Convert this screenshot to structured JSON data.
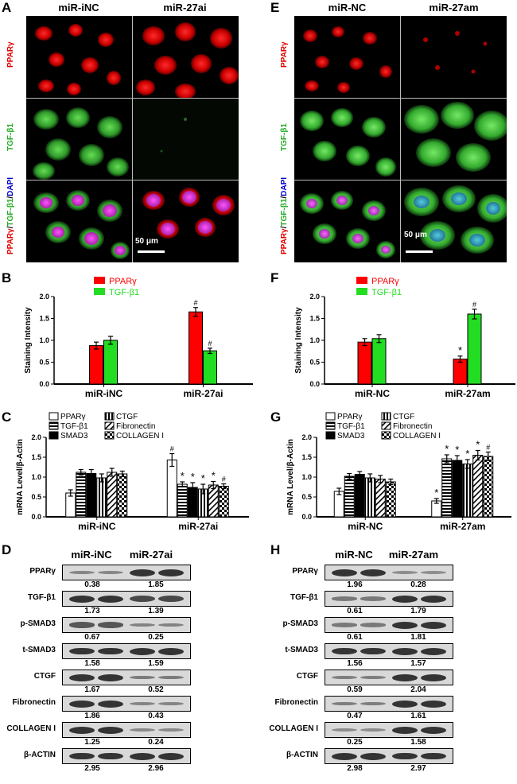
{
  "panels": {
    "A": {
      "letter": "A",
      "col1": "miR-iNC",
      "col2": "miR-27ai",
      "rows": [
        "PPARγ",
        "TGF-β1",
        "PPARγ/TGF-β1/DAPI"
      ],
      "scale": "50 μm"
    },
    "E": {
      "letter": "E",
      "col1": "miR-NC",
      "col2": "miR-27am",
      "rows": [
        "PPARγ",
        "TGF-β1",
        "PPARγ/TGF-β1/DAPI"
      ],
      "scale": "50 μm"
    },
    "B": {
      "letter": "B"
    },
    "F": {
      "letter": "F"
    },
    "C": {
      "letter": "C"
    },
    "G": {
      "letter": "G"
    },
    "D": {
      "letter": "D",
      "col1": "miR-iNC",
      "col2": "miR-27ai",
      "rows": [
        {
          "name": "PPARγ",
          "v1": "0.38",
          "v2": "1.85"
        },
        {
          "name": "TGF-β1",
          "v1": "1.73",
          "v2": "1.39"
        },
        {
          "name": "p-SMAD3",
          "v1": "0.67",
          "v2": "0.25"
        },
        {
          "name": "t-SMAD3",
          "v1": "1.58",
          "v2": "1.59"
        },
        {
          "name": "CTGF",
          "v1": "1.67",
          "v2": "0.52"
        },
        {
          "name": "Fibronectin",
          "v1": "1.86",
          "v2": "0.43"
        },
        {
          "name": "COLLAGEN I",
          "v1": "1.25",
          "v2": "0.24"
        },
        {
          "name": "β-ACTIN",
          "v1": "2.95",
          "v2": "2.96"
        }
      ]
    },
    "H": {
      "letter": "H",
      "col1": "miR-NC",
      "col2": "miR-27am",
      "rows": [
        {
          "name": "PPARγ",
          "v1": "1.96",
          "v2": "0.28"
        },
        {
          "name": "TGF-β1",
          "v1": "0.61",
          "v2": "1.79"
        },
        {
          "name": "p-SMAD3",
          "v1": "0.61",
          "v2": "1.81"
        },
        {
          "name": "t-SMAD3",
          "v1": "1.56",
          "v2": "1.57"
        },
        {
          "name": "CTGF",
          "v1": "0.59",
          "v2": "2.04"
        },
        {
          "name": "Fibronectin",
          "v1": "0.47",
          "v2": "1.61"
        },
        {
          "name": "COLLAGEN I",
          "v1": "0.25",
          "v2": "1.58"
        },
        {
          "name": "β-ACTIN",
          "v1": "2.98",
          "v2": "2.97"
        }
      ]
    }
  },
  "chart_data": [
    {
      "id": "B",
      "type": "bar",
      "categories": [
        "miR-iNC",
        "miR-27ai"
      ],
      "ylabel": "Staining Intensity",
      "ylim": [
        0,
        2.0
      ],
      "yticks": [
        "0.0",
        "0.5",
        "1.0",
        "1.5",
        "2.0"
      ],
      "series": [
        {
          "name": "PPARγ",
          "color": "#ff0000",
          "values": [
            0.88,
            1.65
          ],
          "err": [
            0.08,
            0.1
          ],
          "marks": [
            "",
            "#"
          ]
        },
        {
          "name": "TGF-β1",
          "color": "#22dd22",
          "values": [
            1.0,
            0.76
          ],
          "err": [
            0.09,
            0.06
          ],
          "marks": [
            "",
            "#"
          ]
        }
      ]
    },
    {
      "id": "F",
      "type": "bar",
      "categories": [
        "miR-NC",
        "miR-27am"
      ],
      "ylabel": "Staining Intensity",
      "ylim": [
        0,
        2.0
      ],
      "yticks": [
        "0.0",
        "0.5",
        "1.0",
        "1.5",
        "2.0"
      ],
      "series": [
        {
          "name": "PPARγ",
          "color": "#ff0000",
          "values": [
            0.96,
            0.57
          ],
          "err": [
            0.08,
            0.07
          ],
          "marks": [
            "",
            "*"
          ]
        },
        {
          "name": "TGF-β1",
          "color": "#22dd22",
          "values": [
            1.04,
            1.6
          ],
          "err": [
            0.09,
            0.11
          ],
          "marks": [
            "",
            "#"
          ]
        }
      ]
    },
    {
      "id": "C",
      "type": "bar",
      "categories": [
        "miR-iNC",
        "miR-27ai"
      ],
      "ylabel": "mRNA Level/β-Actin",
      "ylim": [
        0,
        2.0
      ],
      "yticks": [
        "0.0",
        "0.5",
        "1.0",
        "1.5",
        "2.0"
      ],
      "series": [
        {
          "name": "PPARγ",
          "pattern": "white",
          "values": [
            0.6,
            1.43
          ],
          "err": [
            0.08,
            0.16
          ],
          "marks": [
            "",
            "#"
          ]
        },
        {
          "name": "TGF-β1",
          "pattern": "hstripe",
          "values": [
            1.12,
            0.82
          ],
          "err": [
            0.07,
            0.06
          ],
          "marks": [
            "",
            "*"
          ]
        },
        {
          "name": "SMAD3",
          "pattern": "black",
          "values": [
            1.09,
            0.74
          ],
          "err": [
            0.1,
            0.12
          ],
          "marks": [
            "",
            "*"
          ]
        },
        {
          "name": "CTGF",
          "pattern": "vstripe",
          "values": [
            0.98,
            0.7
          ],
          "err": [
            0.1,
            0.12
          ],
          "marks": [
            "",
            "*"
          ]
        },
        {
          "name": "Fibronectin",
          "pattern": "diag",
          "values": [
            1.12,
            0.8
          ],
          "err": [
            0.1,
            0.09
          ],
          "marks": [
            "",
            "*"
          ]
        },
        {
          "name": "COLLAGEN I",
          "pattern": "check",
          "values": [
            1.08,
            0.77
          ],
          "err": [
            0.07,
            0.06
          ],
          "marks": [
            "",
            "#"
          ]
        }
      ]
    },
    {
      "id": "G",
      "type": "bar",
      "categories": [
        "miR-NC",
        "miR-27am"
      ],
      "ylabel": "mRNA Level/β-Actin",
      "ylim": [
        0,
        2.0
      ],
      "yticks": [
        "0.0",
        "0.5",
        "1.0",
        "1.5",
        "2.0"
      ],
      "series": [
        {
          "name": "PPARγ",
          "pattern": "white",
          "values": [
            0.64,
            0.4
          ],
          "err": [
            0.08,
            0.06
          ],
          "marks": [
            "",
            "*"
          ]
        },
        {
          "name": "TGF-β1",
          "pattern": "hstripe",
          "values": [
            1.02,
            1.46
          ],
          "err": [
            0.07,
            0.1
          ],
          "marks": [
            "",
            "*"
          ]
        },
        {
          "name": "SMAD3",
          "pattern": "black",
          "values": [
            1.07,
            1.42
          ],
          "err": [
            0.07,
            0.12
          ],
          "marks": [
            "",
            "*"
          ]
        },
        {
          "name": "CTGF",
          "pattern": "vstripe",
          "values": [
            0.98,
            1.33
          ],
          "err": [
            0.1,
            0.11
          ],
          "marks": [
            "",
            "*"
          ]
        },
        {
          "name": "Fibronectin",
          "pattern": "diag",
          "values": [
            0.95,
            1.55
          ],
          "err": [
            0.09,
            0.12
          ],
          "marks": [
            "",
            "*"
          ]
        },
        {
          "name": "COLLAGEN I",
          "pattern": "check",
          "values": [
            0.88,
            1.52
          ],
          "err": [
            0.07,
            0.11
          ],
          "marks": [
            "",
            "#"
          ]
        }
      ]
    }
  ],
  "colors": {
    "ppar": "#ff0000",
    "tgf": "#22dd22",
    "dapi": "#cc33cc"
  }
}
